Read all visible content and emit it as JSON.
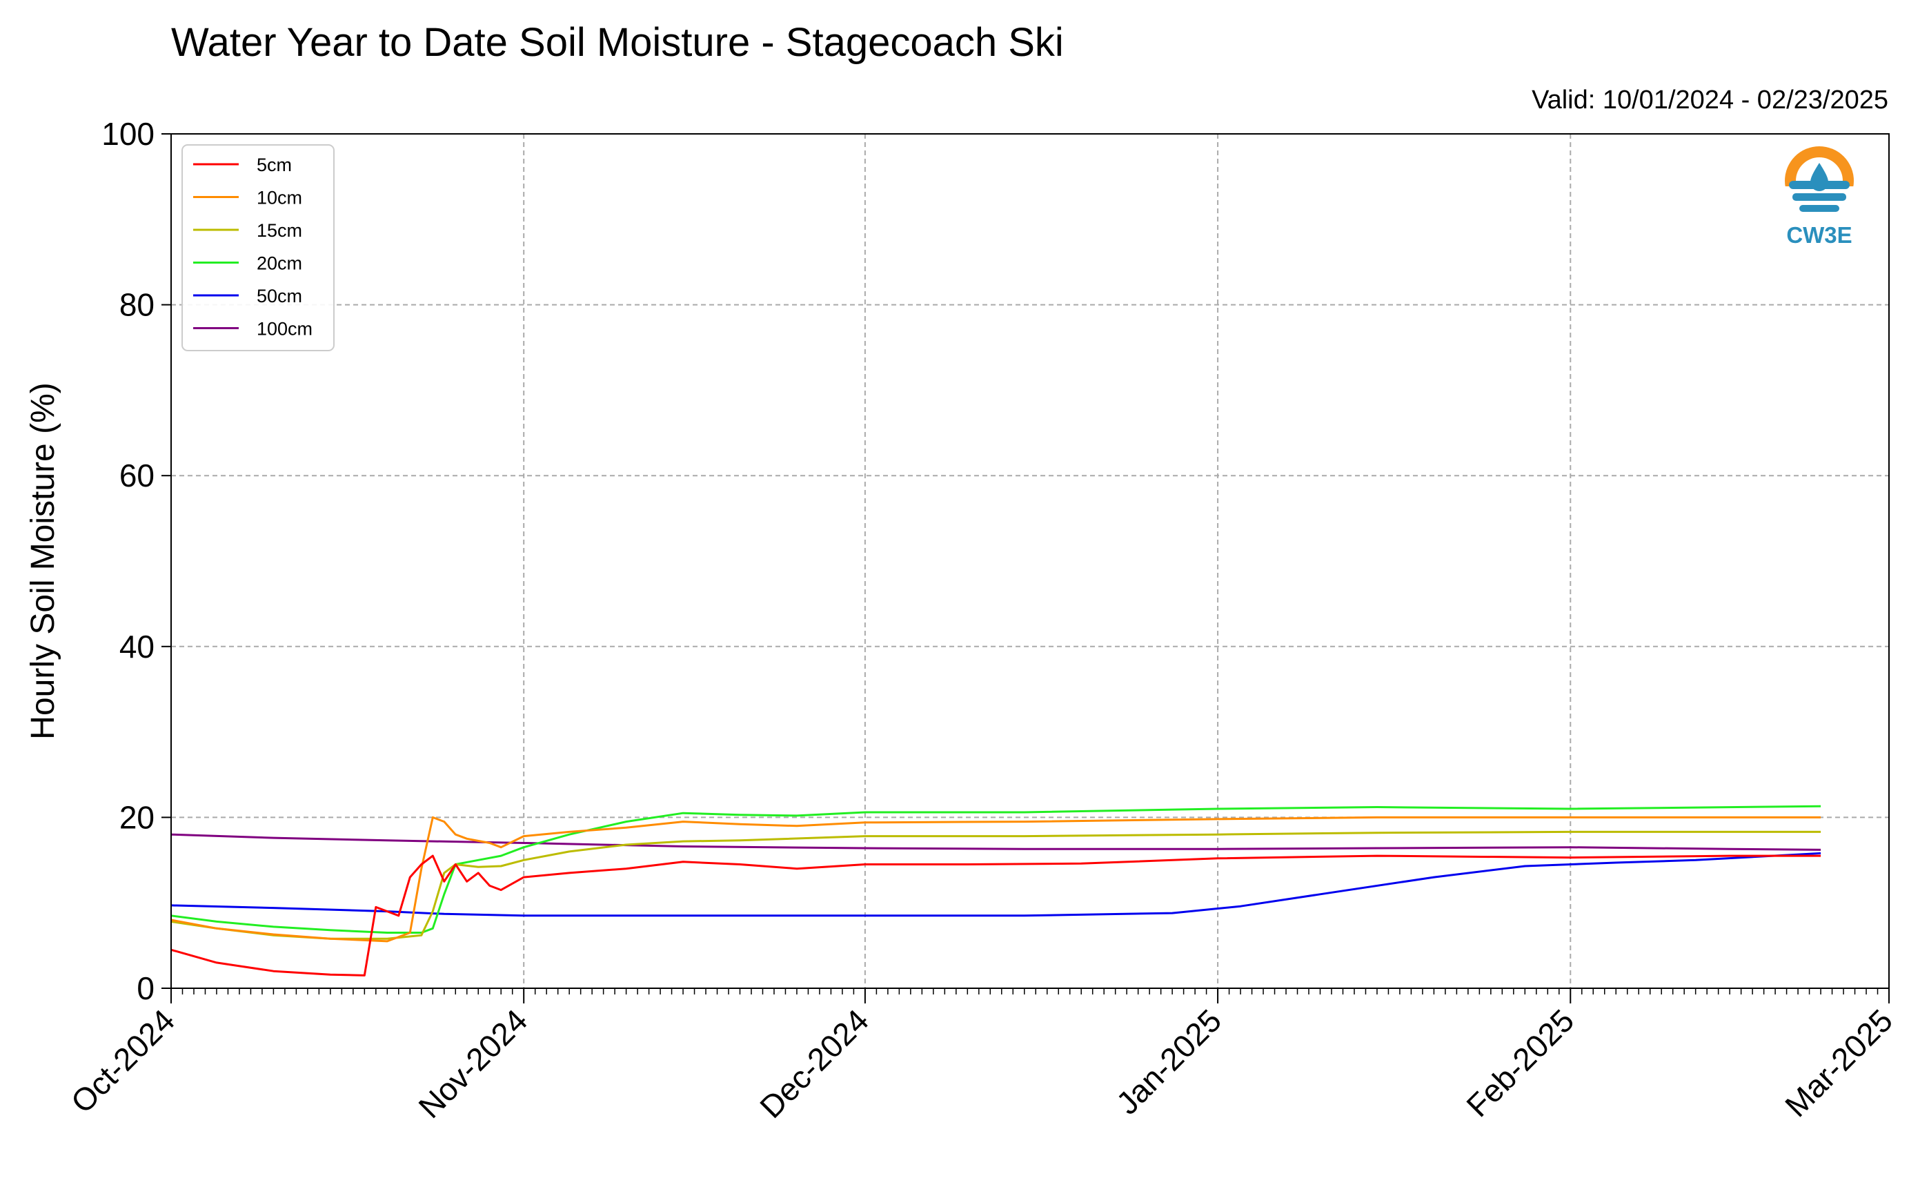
{
  "chart_data": {
    "type": "line",
    "title": "Water Year to Date Soil Moisture - Stagecoach Ski",
    "subtitle": "Valid: 10/01/2024 - 02/23/2025",
    "xlabel": "",
    "ylabel": "Hourly Soil Moisture (%)",
    "ylim": [
      0,
      100
    ],
    "y_ticks": [
      "0",
      "20",
      "40",
      "60",
      "80",
      "100"
    ],
    "xlim": [
      "2024-10-01",
      "2025-03-01"
    ],
    "x_ticks": [
      {
        "date": "2024-10-01",
        "label": "Oct-2024"
      },
      {
        "date": "2024-11-01",
        "label": "Nov-2024"
      },
      {
        "date": "2024-12-01",
        "label": "Dec-2024"
      },
      {
        "date": "2025-01-01",
        "label": "Jan-2025"
      },
      {
        "date": "2025-02-01",
        "label": "Feb-2025"
      },
      {
        "date": "2025-03-01",
        "label": "Mar-2025"
      }
    ],
    "grid": true,
    "legend_position": "top-left",
    "series": [
      {
        "name": "5cm",
        "color": "#ff0000",
        "points": [
          [
            "2024-10-01",
            4.5
          ],
          [
            "2024-10-05",
            3.0
          ],
          [
            "2024-10-10",
            2.0
          ],
          [
            "2024-10-15",
            1.6
          ],
          [
            "2024-10-18",
            1.5
          ],
          [
            "2024-10-19",
            9.5
          ],
          [
            "2024-10-20",
            9.0
          ],
          [
            "2024-10-21",
            8.5
          ],
          [
            "2024-10-22",
            13
          ],
          [
            "2024-10-23",
            14.5
          ],
          [
            "2024-10-24",
            15.5
          ],
          [
            "2024-10-25",
            12.5
          ],
          [
            "2024-10-26",
            14.5
          ],
          [
            "2024-10-27",
            12.5
          ],
          [
            "2024-10-28",
            13.5
          ],
          [
            "2024-10-29",
            12
          ],
          [
            "2024-10-30",
            11.5
          ],
          [
            "2024-11-01",
            13.0
          ],
          [
            "2024-11-05",
            13.5
          ],
          [
            "2024-11-10",
            14.0
          ],
          [
            "2024-11-15",
            14.8
          ],
          [
            "2024-11-20",
            14.5
          ],
          [
            "2024-11-25",
            14.0
          ],
          [
            "2024-12-01",
            14.5
          ],
          [
            "2024-12-10",
            14.5
          ],
          [
            "2024-12-20",
            14.6
          ],
          [
            "2025-01-01",
            15.2
          ],
          [
            "2025-01-15",
            15.5
          ],
          [
            "2025-02-01",
            15.3
          ],
          [
            "2025-02-15",
            15.5
          ],
          [
            "2025-02-23",
            15.5
          ]
        ]
      },
      {
        "name": "10cm",
        "color": "#ff8c00",
        "points": [
          [
            "2024-10-01",
            8.0
          ],
          [
            "2024-10-05",
            7.0
          ],
          [
            "2024-10-10",
            6.3
          ],
          [
            "2024-10-15",
            5.8
          ],
          [
            "2024-10-20",
            5.5
          ],
          [
            "2024-10-22",
            6.5
          ],
          [
            "2024-10-23",
            14.0
          ],
          [
            "2024-10-24",
            20.0
          ],
          [
            "2024-10-25",
            19.5
          ],
          [
            "2024-10-26",
            18.0
          ],
          [
            "2024-10-27",
            17.5
          ],
          [
            "2024-10-29",
            17.0
          ],
          [
            "2024-10-30",
            16.5
          ],
          [
            "2024-11-01",
            17.8
          ],
          [
            "2024-11-05",
            18.3
          ],
          [
            "2024-11-10",
            18.8
          ],
          [
            "2024-11-15",
            19.5
          ],
          [
            "2024-11-20",
            19.2
          ],
          [
            "2024-11-25",
            19.0
          ],
          [
            "2024-12-01",
            19.4
          ],
          [
            "2024-12-15",
            19.5
          ],
          [
            "2025-01-01",
            19.8
          ],
          [
            "2025-01-15",
            20.0
          ],
          [
            "2025-02-01",
            20.0
          ],
          [
            "2025-02-23",
            20.0
          ]
        ]
      },
      {
        "name": "15cm",
        "color": "#bcbc00",
        "points": [
          [
            "2024-10-01",
            7.8
          ],
          [
            "2024-10-05",
            7.0
          ],
          [
            "2024-10-10",
            6.2
          ],
          [
            "2024-10-15",
            5.8
          ],
          [
            "2024-10-20",
            5.8
          ],
          [
            "2024-10-23",
            6.2
          ],
          [
            "2024-10-24",
            9.0
          ],
          [
            "2024-10-25",
            13.5
          ],
          [
            "2024-10-26",
            14.5
          ],
          [
            "2024-10-28",
            14.2
          ],
          [
            "2024-10-30",
            14.3
          ],
          [
            "2024-11-01",
            15.0
          ],
          [
            "2024-11-05",
            16.0
          ],
          [
            "2024-11-10",
            16.8
          ],
          [
            "2024-11-15",
            17.2
          ],
          [
            "2024-11-20",
            17.3
          ],
          [
            "2024-12-01",
            17.8
          ],
          [
            "2024-12-15",
            17.8
          ],
          [
            "2025-01-01",
            18.0
          ],
          [
            "2025-01-15",
            18.2
          ],
          [
            "2025-02-01",
            18.3
          ],
          [
            "2025-02-23",
            18.3
          ]
        ]
      },
      {
        "name": "20cm",
        "color": "#22ee22",
        "points": [
          [
            "2024-10-01",
            8.5
          ],
          [
            "2024-10-05",
            7.8
          ],
          [
            "2024-10-10",
            7.2
          ],
          [
            "2024-10-15",
            6.8
          ],
          [
            "2024-10-20",
            6.5
          ],
          [
            "2024-10-23",
            6.5
          ],
          [
            "2024-10-24",
            7.0
          ],
          [
            "2024-10-25",
            11.0
          ],
          [
            "2024-10-26",
            14.5
          ],
          [
            "2024-10-28",
            15.0
          ],
          [
            "2024-10-30",
            15.5
          ],
          [
            "2024-11-01",
            16.5
          ],
          [
            "2024-11-05",
            18.0
          ],
          [
            "2024-11-10",
            19.5
          ],
          [
            "2024-11-15",
            20.5
          ],
          [
            "2024-11-20",
            20.3
          ],
          [
            "2024-11-25",
            20.2
          ],
          [
            "2024-12-01",
            20.6
          ],
          [
            "2024-12-15",
            20.6
          ],
          [
            "2025-01-01",
            21.0
          ],
          [
            "2025-01-15",
            21.2
          ],
          [
            "2025-02-01",
            21.0
          ],
          [
            "2025-02-23",
            21.3
          ]
        ]
      },
      {
        "name": "50cm",
        "color": "#0000ee",
        "points": [
          [
            "2024-10-01",
            9.7
          ],
          [
            "2024-10-10",
            9.4
          ],
          [
            "2024-10-20",
            9.0
          ],
          [
            "2024-10-25",
            8.7
          ],
          [
            "2024-11-01",
            8.5
          ],
          [
            "2024-11-15",
            8.5
          ],
          [
            "2024-12-01",
            8.5
          ],
          [
            "2024-12-15",
            8.5
          ],
          [
            "2024-12-28",
            8.8
          ],
          [
            "2025-01-03",
            9.6
          ],
          [
            "2025-01-10",
            11.0
          ],
          [
            "2025-01-20",
            13.0
          ],
          [
            "2025-01-28",
            14.3
          ],
          [
            "2025-02-05",
            14.7
          ],
          [
            "2025-02-12",
            15.0
          ],
          [
            "2025-02-23",
            15.8
          ]
        ]
      },
      {
        "name": "100cm",
        "color": "#800080",
        "points": [
          [
            "2024-10-01",
            18.0
          ],
          [
            "2024-10-10",
            17.6
          ],
          [
            "2024-10-20",
            17.3
          ],
          [
            "2024-11-01",
            17.0
          ],
          [
            "2024-11-15",
            16.6
          ],
          [
            "2024-12-01",
            16.4
          ],
          [
            "2024-12-15",
            16.3
          ],
          [
            "2025-01-01",
            16.3
          ],
          [
            "2025-01-15",
            16.4
          ],
          [
            "2025-02-01",
            16.5
          ],
          [
            "2025-02-15",
            16.3
          ],
          [
            "2025-02-23",
            16.2
          ]
        ]
      }
    ]
  },
  "logo": {
    "text": "CW3E"
  }
}
